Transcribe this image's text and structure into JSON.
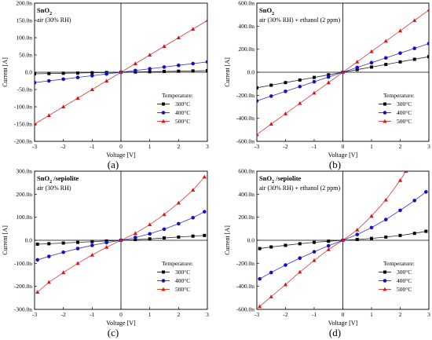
{
  "chart_data": [
    {
      "type": "line",
      "panel_label": "(a)",
      "title": "SnO",
      "title_sub": "2",
      "title_suffix": "",
      "subtitle": "air (30% RH)",
      "xlabel": "Voltage [V]",
      "ylabel": "Current [A]",
      "xlim": [
        -3,
        3
      ],
      "ylim": [
        -200,
        200
      ],
      "xticks": [
        -3,
        -2,
        -1,
        0,
        1,
        2,
        3
      ],
      "yticks": [
        -200,
        -150,
        -100,
        -50,
        0,
        50,
        100,
        150,
        200
      ],
      "ytick_labels": [
        "-200.0n",
        "-150.0n",
        "-100.0n",
        "-50.0n",
        "0.0",
        "50.0n",
        "100.0n",
        "150.0n",
        "200.0n"
      ],
      "legend_title": "Temperature:",
      "legend_position": "bottom-right",
      "series": [
        {
          "name": "300°C",
          "marker": "square",
          "color": "#000000",
          "slope": 1.5
        },
        {
          "name": "400°C",
          "marker": "circle",
          "color": "#1010c8",
          "slope": 10
        },
        {
          "name": "500°C",
          "marker": "triangle",
          "color": "#d81818",
          "slope": 50
        }
      ]
    },
    {
      "type": "line",
      "panel_label": "(b)",
      "title": "SnO",
      "title_sub": "2",
      "title_suffix": "",
      "subtitle": "air (30% RH) + ethanol (2 ppm)",
      "xlabel": "Voltage [V]",
      "ylabel": "Current [A]",
      "xlim": [
        -3,
        3
      ],
      "ylim": [
        -600,
        600
      ],
      "xticks": [
        -3,
        -2,
        -1,
        0,
        1,
        2,
        3
      ],
      "yticks": [
        -600,
        -400,
        -200,
        0,
        200,
        400,
        600
      ],
      "ytick_labels": [
        "-600.0n",
        "-400.0n",
        "-200.0n",
        "0.0",
        "200.0n",
        "400.0n",
        "600.0n"
      ],
      "legend_title": "Temperature:",
      "legend_position": "bottom-right",
      "series": [
        {
          "name": "300°C",
          "marker": "square",
          "color": "#000000",
          "slope": 45
        },
        {
          "name": "400°C",
          "marker": "circle",
          "color": "#1010c8",
          "slope": 83
        },
        {
          "name": "500°C",
          "marker": "triangle",
          "color": "#d81818",
          "slope": 180
        }
      ]
    },
    {
      "type": "line",
      "panel_label": "(c)",
      "title": "SnO",
      "title_sub": "2",
      "title_suffix": " /sepiolite",
      "subtitle": "air (30% RH)",
      "xlabel": "Voltage [V]",
      "ylabel": "Current [A]",
      "xlim": [
        -3,
        3
      ],
      "ylim": [
        -300,
        300
      ],
      "xticks": [
        -3,
        -2,
        -1,
        0,
        1,
        2,
        3
      ],
      "yticks": [
        -300,
        -200,
        -100,
        0,
        100,
        200,
        300
      ],
      "ytick_labels": [
        "-300.0n",
        "-200.0n",
        "-100.0n",
        "0.0",
        "100.0n",
        "200.0n",
        "300.0n"
      ],
      "legend_title": "Temperature:",
      "legend_position": "bottom-right",
      "series": [
        {
          "name": "300°C",
          "marker": "square",
          "color": "#000000",
          "pos": [
            [
              0.5,
              3
            ],
            [
              1,
              6
            ],
            [
              1.5,
              10
            ],
            [
              2,
              14
            ],
            [
              2.5,
              18
            ],
            [
              2.9,
              21
            ]
          ],
          "neg": [
            [
              -0.5,
              -3
            ],
            [
              -1,
              -6
            ],
            [
              -1.5,
              -9
            ],
            [
              -2,
              -12
            ],
            [
              -2.5,
              -15
            ],
            [
              -2.9,
              -17
            ]
          ]
        },
        {
          "name": "400°C",
          "marker": "circle",
          "color": "#1010c8",
          "pos": [
            [
              0.5,
              12
            ],
            [
              1,
              28
            ],
            [
              1.5,
              48
            ],
            [
              2,
              72
            ],
            [
              2.5,
              98
            ],
            [
              2.9,
              124
            ]
          ],
          "neg": [
            [
              -0.5,
              -10
            ],
            [
              -1,
              -22
            ],
            [
              -1.5,
              -36
            ],
            [
              -2,
              -52
            ],
            [
              -2.5,
              -70
            ],
            [
              -2.9,
              -85
            ]
          ]
        },
        {
          "name": "500°C",
          "marker": "triangle",
          "color": "#d81818",
          "pos": [
            [
              0.5,
              30
            ],
            [
              1,
              68
            ],
            [
              1.5,
              112
            ],
            [
              2,
              162
            ],
            [
              2.5,
              218
            ],
            [
              2.9,
              275
            ]
          ],
          "neg": [
            [
              -0.5,
              -30
            ],
            [
              -1,
              -64
            ],
            [
              -1.5,
              -100
            ],
            [
              -2,
              -140
            ],
            [
              -2.5,
              -182
            ],
            [
              -2.9,
              -225
            ]
          ]
        }
      ]
    },
    {
      "type": "line",
      "panel_label": "(d)",
      "title": "SnO",
      "title_sub": "2",
      "title_suffix": " /sepiolite",
      "subtitle": "air (30% RH) + ethanol (2 ppm)",
      "xlabel": "Voltage [V]",
      "ylabel": "Current [A]",
      "xlim": [
        -3,
        3
      ],
      "ylim": [
        -600,
        600
      ],
      "xticks": [
        -3,
        -2,
        -1,
        0,
        1,
        2,
        3
      ],
      "yticks": [
        -600,
        -400,
        -200,
        0,
        200,
        400,
        600
      ],
      "ytick_labels": [
        "-600.0n",
        "-400.0n",
        "-200.0n",
        "0.0",
        "200.0n",
        "400.0n",
        "600.0n"
      ],
      "legend_title": "Temperature:",
      "legend_position": "bottom-right",
      "series": [
        {
          "name": "300°C",
          "marker": "square",
          "color": "#000000",
          "pos": [
            [
              0.5,
              7
            ],
            [
              1,
              16
            ],
            [
              1.5,
              28
            ],
            [
              2,
              42
            ],
            [
              2.5,
              60
            ],
            [
              2.9,
              78
            ]
          ],
          "neg": [
            [
              -0.5,
              -8
            ],
            [
              -1,
              -18
            ],
            [
              -1.5,
              -30
            ],
            [
              -2,
              -44
            ],
            [
              -2.5,
              -58
            ],
            [
              -2.9,
              -72
            ]
          ]
        },
        {
          "name": "400°C",
          "marker": "circle",
          "color": "#1010c8",
          "pos": [
            [
              0.5,
              50
            ],
            [
              1,
              110
            ],
            [
              1.5,
              180
            ],
            [
              2,
              260
            ],
            [
              2.5,
              345
            ],
            [
              2.9,
              420
            ]
          ],
          "neg": [
            [
              -0.5,
              -48
            ],
            [
              -1,
              -100
            ],
            [
              -1.5,
              -155
            ],
            [
              -2,
              -215
            ],
            [
              -2.5,
              -280
            ],
            [
              -2.9,
              -335
            ]
          ]
        },
        {
          "name": "500°C",
          "marker": "triangle",
          "color": "#d81818",
          "pos": [
            [
              0.5,
              90
            ],
            [
              1,
              210
            ],
            [
              1.5,
              350
            ],
            [
              2,
              520
            ],
            [
              2.2,
              600
            ]
          ],
          "neg": [
            [
              -0.5,
              -80
            ],
            [
              -1,
              -175
            ],
            [
              -1.5,
              -275
            ],
            [
              -2,
              -385
            ],
            [
              -2.5,
              -490
            ],
            [
              -2.9,
              -575
            ]
          ]
        }
      ]
    }
  ]
}
